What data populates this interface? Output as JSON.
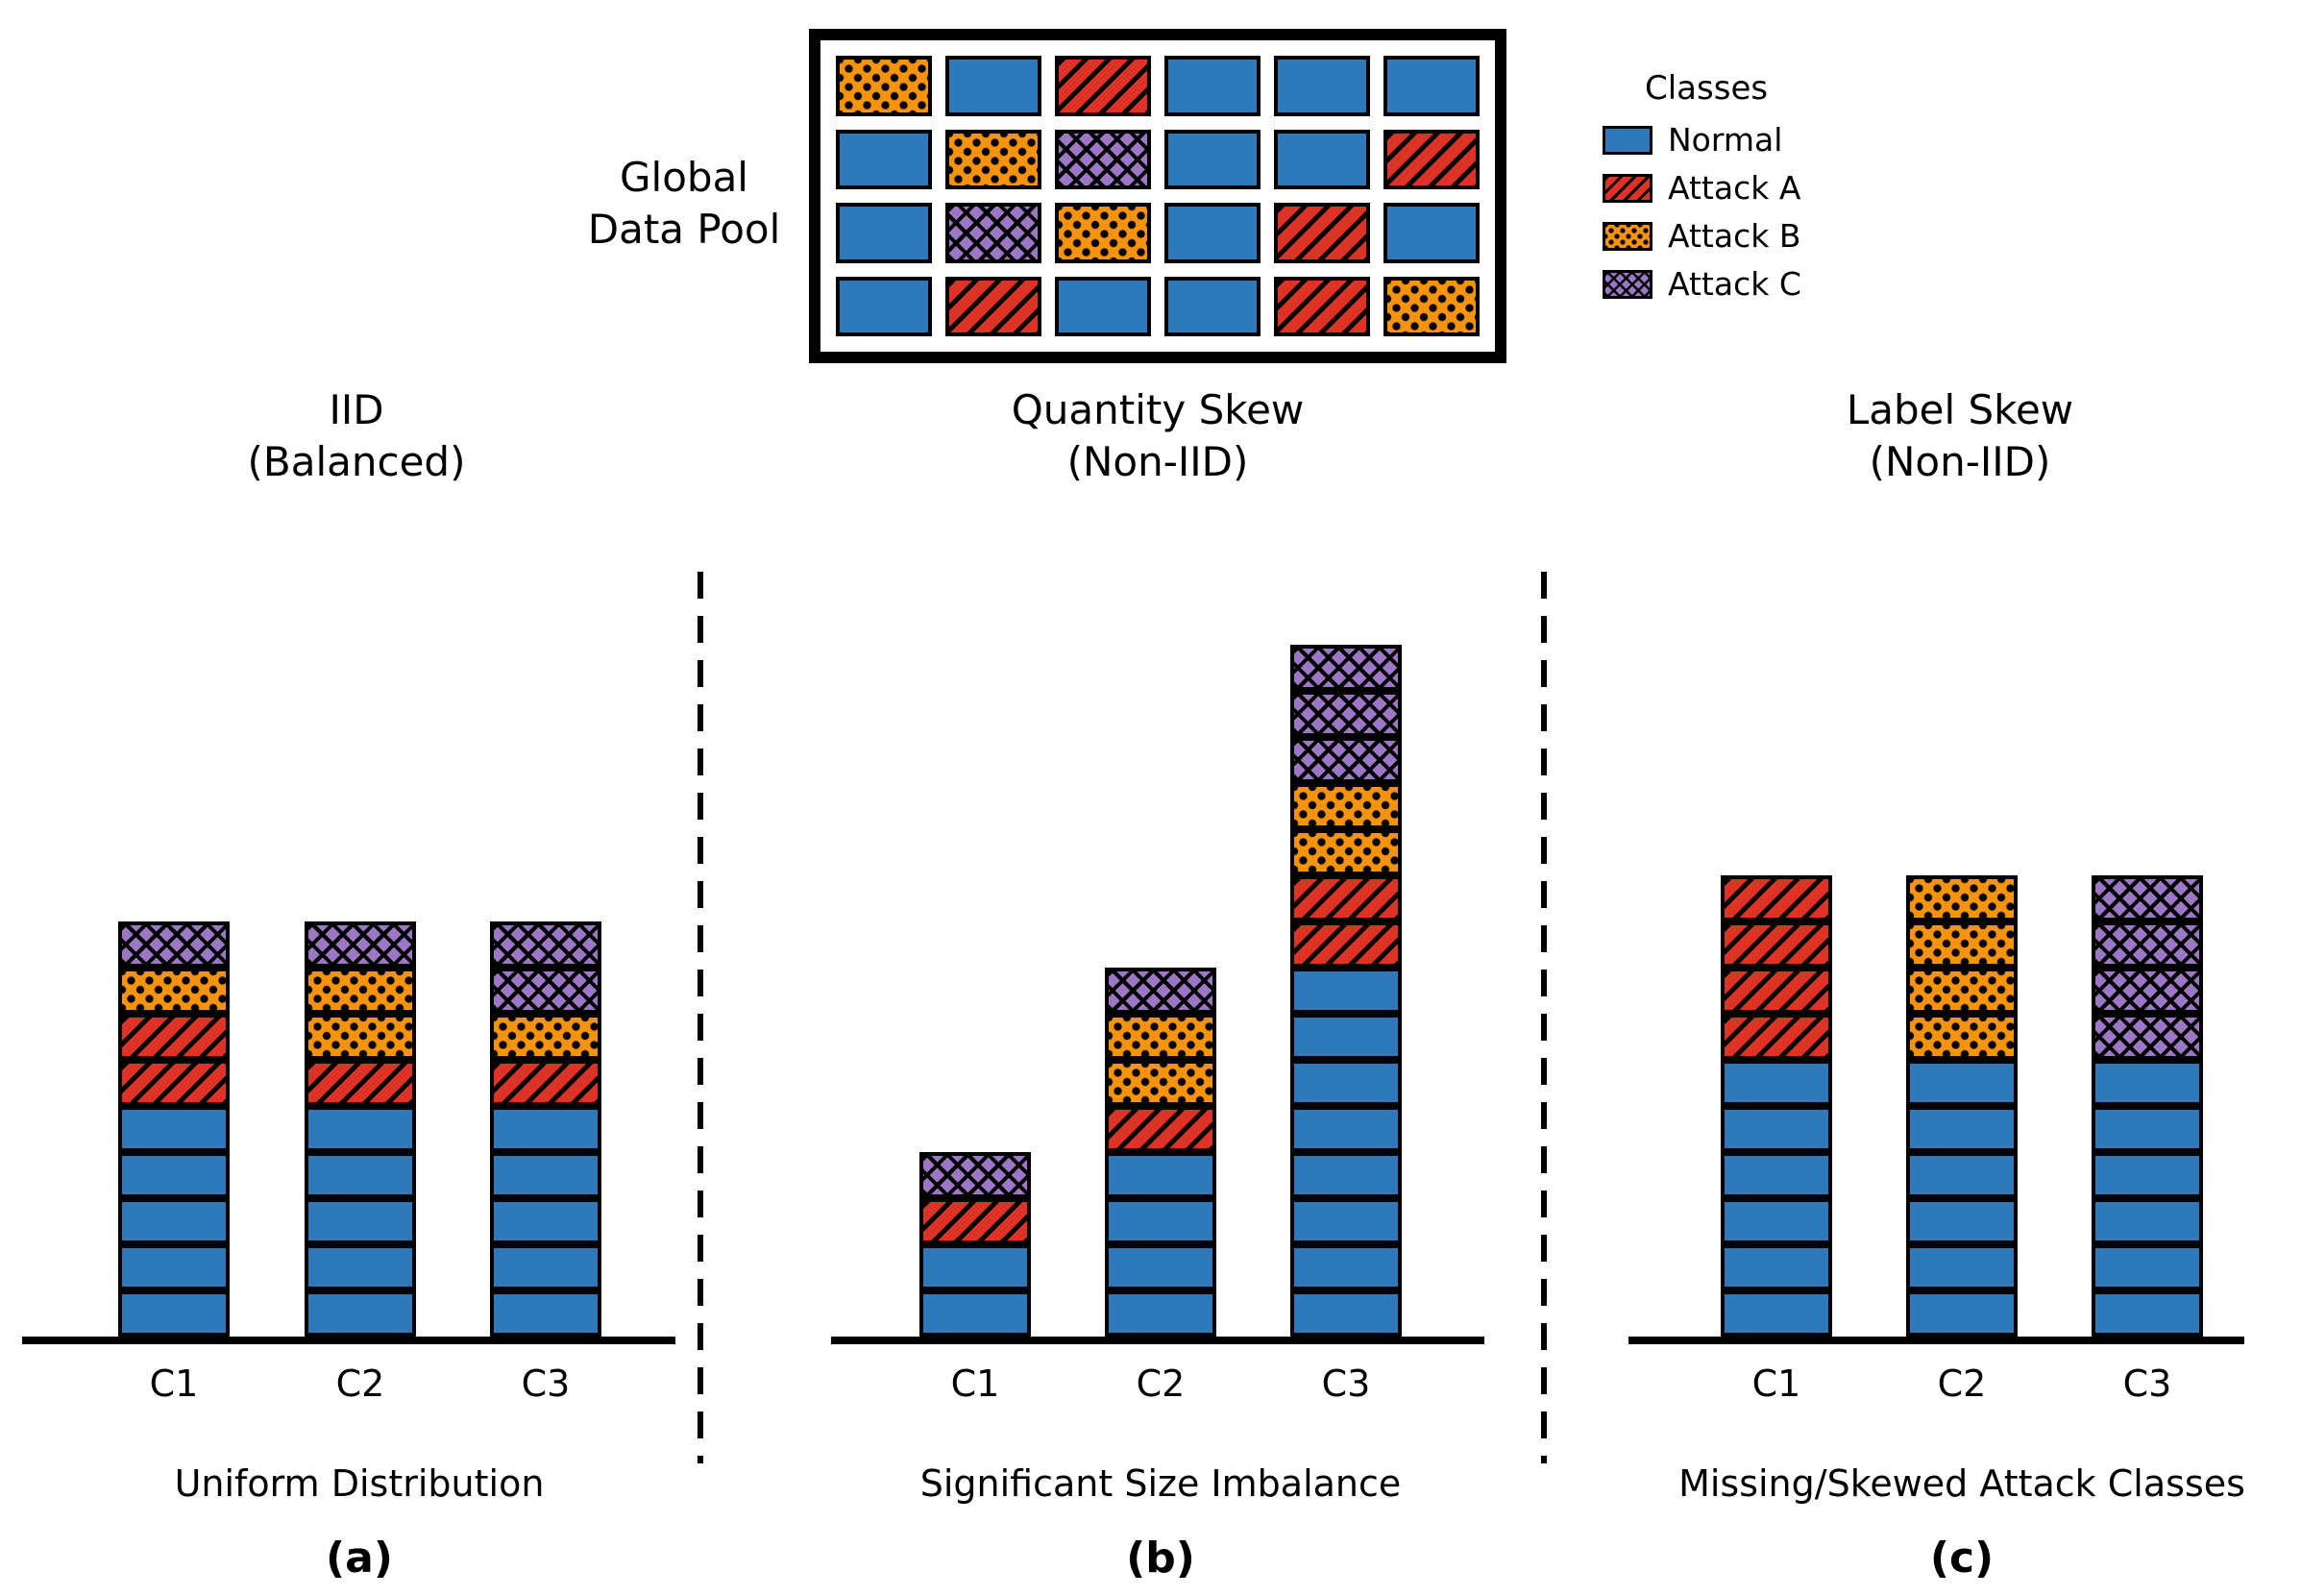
{
  "figure": {
    "background": "#FFFFFF"
  },
  "pool": {
    "label_lines": [
      "Global",
      "Data Pool"
    ],
    "grid": [
      [
        "attack_b",
        "normal",
        "attack_a",
        "normal",
        "normal",
        "normal"
      ],
      [
        "normal",
        "attack_b",
        "attack_c",
        "normal",
        "normal",
        "attack_a"
      ],
      [
        "normal",
        "attack_c",
        "attack_b",
        "normal",
        "attack_a",
        "normal"
      ],
      [
        "normal",
        "attack_a",
        "normal",
        "normal",
        "attack_a",
        "attack_b"
      ]
    ]
  },
  "legend": {
    "title": "Classes",
    "items": [
      {
        "class": "normal",
        "label": "Normal"
      },
      {
        "class": "attack_a",
        "label": "Attack A"
      },
      {
        "class": "attack_b",
        "label": "Attack B"
      },
      {
        "class": "attack_c",
        "label": "Attack C"
      }
    ]
  },
  "classes": {
    "normal": {
      "name": "Normal",
      "color": "#2E79B9",
      "pattern": "solid"
    },
    "attack_a": {
      "name": "Attack A",
      "color": "#DD3327",
      "pattern": "diagonal-hatch"
    },
    "attack_b": {
      "name": "Attack B",
      "color": "#F6930D",
      "pattern": "dots"
    },
    "attack_c": {
      "name": "Attack C",
      "color": "#9C77C5",
      "pattern": "crosshatch"
    }
  },
  "panels": [
    {
      "id": "a",
      "title_lines": [
        "IID",
        "(Balanced)"
      ],
      "caption": "Uniform Distribution",
      "tag": "(a)",
      "bars": [
        {
          "label": "C1",
          "blocks": [
            "normal",
            "normal",
            "normal",
            "normal",
            "normal",
            "attack_a",
            "attack_a",
            "attack_b",
            "attack_c"
          ]
        },
        {
          "label": "C2",
          "blocks": [
            "normal",
            "normal",
            "normal",
            "normal",
            "normal",
            "attack_a",
            "attack_b",
            "attack_b",
            "attack_c"
          ]
        },
        {
          "label": "C3",
          "blocks": [
            "normal",
            "normal",
            "normal",
            "normal",
            "normal",
            "attack_a",
            "attack_b",
            "attack_c",
            "attack_c"
          ]
        }
      ]
    },
    {
      "id": "b",
      "title_lines": [
        "Quantity Skew",
        "(Non-IID)"
      ],
      "caption": "Significant Size Imbalance",
      "tag": "(b)",
      "bars": [
        {
          "label": "C1",
          "blocks": [
            "normal",
            "normal",
            "attack_a",
            "attack_c"
          ]
        },
        {
          "label": "C2",
          "blocks": [
            "normal",
            "normal",
            "normal",
            "normal",
            "attack_a",
            "attack_b",
            "attack_b",
            "attack_c"
          ]
        },
        {
          "label": "C3",
          "blocks": [
            "normal",
            "normal",
            "normal",
            "normal",
            "normal",
            "normal",
            "normal",
            "normal",
            "attack_a",
            "attack_a",
            "attack_b",
            "attack_b",
            "attack_c",
            "attack_c",
            "attack_c"
          ]
        }
      ]
    },
    {
      "id": "c",
      "title_lines": [
        "Label Skew",
        "(Non-IID)"
      ],
      "caption": "Missing/Skewed Attack Classes",
      "tag": "(c)",
      "bars": [
        {
          "label": "C1",
          "blocks": [
            "normal",
            "normal",
            "normal",
            "normal",
            "normal",
            "normal",
            "attack_a",
            "attack_a",
            "attack_a",
            "attack_a"
          ]
        },
        {
          "label": "C2",
          "blocks": [
            "normal",
            "normal",
            "normal",
            "normal",
            "normal",
            "normal",
            "attack_b",
            "attack_b",
            "attack_b",
            "attack_b"
          ]
        },
        {
          "label": "C3",
          "blocks": [
            "normal",
            "normal",
            "normal",
            "normal",
            "normal",
            "normal",
            "attack_c",
            "attack_c",
            "attack_c",
            "attack_c"
          ]
        }
      ]
    }
  ]
}
